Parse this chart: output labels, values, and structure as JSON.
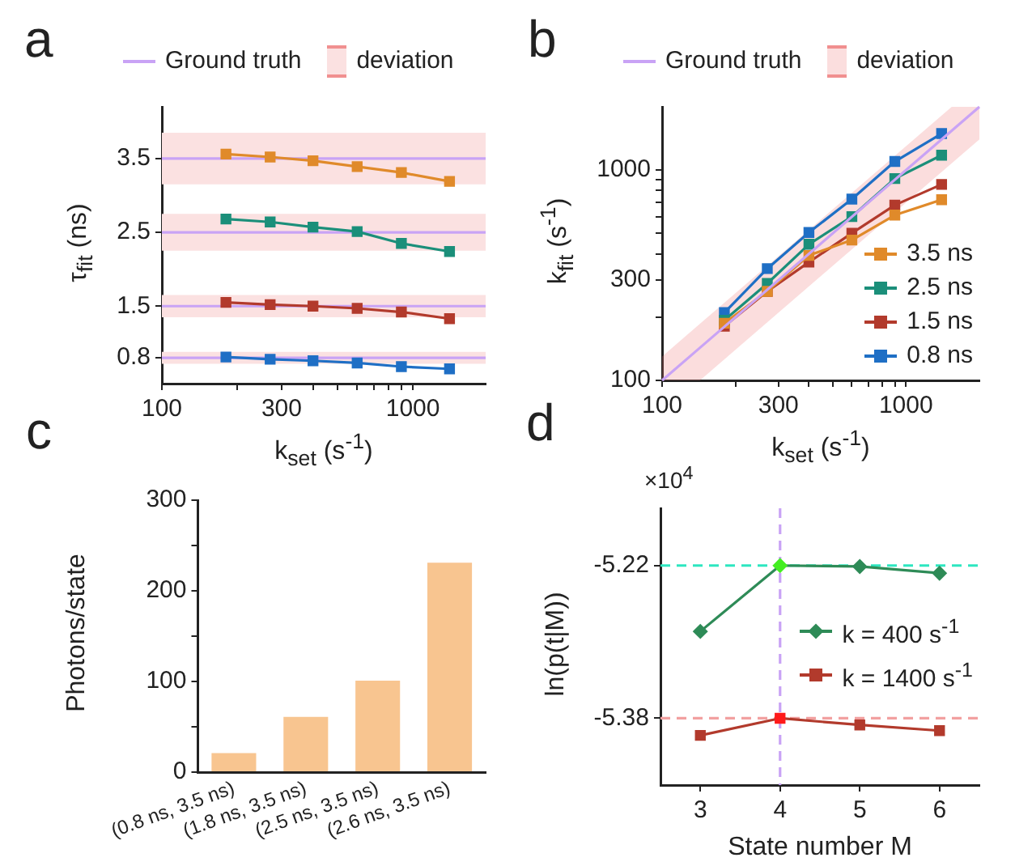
{
  "chart_data": [
    {
      "type": "line",
      "title": "a",
      "x": [
        180,
        270,
        400,
        600,
        900,
        1400
      ],
      "log": "x",
      "xlim": [
        100,
        1950
      ],
      "ylim": [
        0.45,
        4.2
      ],
      "yticks": [
        0.8,
        1.5,
        2.5,
        3.5
      ],
      "marker": "square",
      "legend": "top",
      "ylabel": "τ$_{fit}$ (ns)",
      "xlabel": "k$_{set}$ (s$^{-1}$)",
      "xticks": [
        100,
        {
          "value": 200,
          "label": null
        },
        300,
        {
          "value": 400,
          "label": null
        },
        {
          "value": 500,
          "label": null
        },
        {
          "value": 600,
          "label": null
        },
        {
          "value": 700,
          "label": null
        },
        {
          "value": 800,
          "label": null
        },
        {
          "value": 900,
          "label": null
        },
        1000
      ],
      "series": [
        {
          "color": "#e08a2a",
          "values": [
            3.56,
            3.52,
            3.47,
            3.39,
            3.31,
            3.19
          ]
        },
        {
          "color": "#1b8f7a",
          "values": [
            2.68,
            2.64,
            2.57,
            2.51,
            2.35,
            2.24
          ]
        },
        {
          "color": "#b23a2c",
          "values": [
            1.55,
            1.52,
            1.5,
            1.47,
            1.42,
            1.33
          ]
        },
        {
          "color": "#1f6fc5",
          "values": [
            0.81,
            0.78,
            0.76,
            0.73,
            0.68,
            0.65
          ]
        }
      ],
      "ref_lines": [
        {
          "axis": "y",
          "value": 3.5,
          "label": "Ground truth",
          "color": "#c9a3f5"
        },
        {
          "axis": "y",
          "value": 2.5,
          "color": "#c9a3f5"
        },
        {
          "axis": "y",
          "value": 1.5,
          "color": "#c9a3f5"
        },
        {
          "axis": "y",
          "value": 0.8,
          "color": "#c9a3f5"
        }
      ],
      "bands": [
        {
          "axis": "y",
          "from": 3.15,
          "to": 3.85,
          "label": "deviation",
          "color": "#fbe1e1"
        },
        {
          "axis": "y",
          "from": 2.25,
          "to": 2.75,
          "color": "#fbe1e1"
        },
        {
          "axis": "y",
          "from": 1.35,
          "to": 1.65,
          "color": "#fbe1e1"
        },
        {
          "axis": "y",
          "from": 0.72,
          "to": 0.88,
          "color": "#fbe1e1"
        }
      ]
    },
    {
      "type": "line",
      "title": "b",
      "x": [
        180,
        270,
        400,
        600,
        900,
        1400
      ],
      "log": "xy",
      "xlim": [
        100,
        2000
      ],
      "ylim": [
        100,
        2000
      ],
      "marker": "square",
      "legend": "bottom right",
      "xlabel": "k$_{set}$ (s$^{-1}$)",
      "ylabel": "k$_{fit}$ (s$^{-1}$)",
      "annotations": [
        "Ground truth",
        "deviation"
      ],
      "xticks": [
        100,
        {
          "value": 200,
          "label": null
        },
        300,
        {
          "value": 400,
          "label": null
        },
        {
          "value": 500,
          "label": null
        },
        {
          "value": 600,
          "label": null
        },
        {
          "value": 700,
          "label": null
        },
        {
          "value": 800,
          "label": null
        },
        {
          "value": 900,
          "label": null
        },
        1000
      ],
      "yticks": [
        100,
        {
          "value": 200,
          "label": null
        },
        300,
        {
          "value": 400,
          "label": null
        },
        {
          "value": 500,
          "label": null
        },
        {
          "value": 600,
          "label": null
        },
        {
          "value": 700,
          "label": null
        },
        {
          "value": 800,
          "label": null
        },
        {
          "value": 900,
          "label": null
        },
        1000
      ],
      "series": [
        {
          "type": "line",
          "marker": "none",
          "color": "#c9a3f5",
          "x": [
            100,
            143,
            1540,
            2000
          ],
          "values": [
            100,
            143,
            1540,
            2000
          ],
          "lower": [
            100,
            100,
            1078,
            1400
          ],
          "upper": [
            130,
            186,
            2000,
            2000
          ]
        },
        {
          "name": "3.5 ns",
          "color": "#e08a2a",
          "values": [
            187,
            265,
            393,
            465,
            611,
            723
          ]
        },
        {
          "name": "2.5 ns",
          "color": "#1b8f7a",
          "values": [
            193,
            289,
            444,
            601,
            912,
            1178
          ]
        },
        {
          "name": "1.5 ns",
          "color": "#b23a2c",
          "values": [
            181,
            265,
            365,
            501,
            682,
            855
          ]
        },
        {
          "name": "0.8 ns",
          "color": "#1f6fc5",
          "values": [
            210,
            340,
            505,
            728,
            1099,
            1492
          ]
        }
      ]
    },
    {
      "type": "bar",
      "title": "c",
      "categories": [
        "(0.8 ns, 3.5 ns)",
        "(1.8 ns, 3.5 ns)",
        "(2.5 ns, 3.5 ns)",
        "(2.6 ns, 3.5 ns)"
      ],
      "values": [
        21,
        61,
        101,
        231
      ],
      "color": "#f8c590",
      "ylim": [
        0,
        300
      ],
      "yticks": [
        0,
        {
          "value": 50,
          "label": null
        },
        100,
        {
          "value": 150,
          "label": null
        },
        200,
        {
          "value": 250,
          "label": null
        },
        300
      ],
      "ylabel": "Photons/state"
    },
    {
      "type": "line",
      "title": "d",
      "x": [
        3,
        4,
        5,
        6
      ],
      "xlim": [
        2.5,
        6.5
      ],
      "ylim": [
        -5.45,
        -5.16
      ],
      "yticks": [
        -5.38,
        -5.22
      ],
      "xticks": [
        3,
        4,
        5,
        6
      ],
      "legend": "right",
      "ylabel": "ln(p(t|M))",
      "xlabel": "State number M",
      "annotations": [
        "×10$^{4}$"
      ],
      "series": [
        {
          "name": "k = 400 s$^{-1}$",
          "marker": "diamond",
          "color": "#2e8b57",
          "colors": [
            "#2e8b57",
            "#44ee22",
            "#2e8b57",
            "#2e8b57"
          ],
          "values": [
            -5.289,
            -5.22,
            -5.221,
            -5.228
          ]
        },
        {
          "name": "k = 1400 s$^{-1}$",
          "marker": "square",
          "color": "#b23a2c",
          "colors": [
            "#b23a2c",
            "#ff1a1a",
            "#b23a2c",
            "#b23a2c"
          ],
          "values": [
            -5.398,
            -5.38,
            -5.387,
            -5.393
          ]
        }
      ],
      "ref_lines": [
        {
          "axis": "y",
          "value": -5.22,
          "color": "#2de6c0",
          "line_style": "dashed"
        },
        {
          "axis": "y",
          "value": -5.38,
          "color": "#f2a0a0",
          "line_style": "dashed"
        },
        {
          "axis": "x",
          "value": 4,
          "color": "#c9a3f5",
          "line_style": "dashed"
        }
      ]
    }
  ]
}
